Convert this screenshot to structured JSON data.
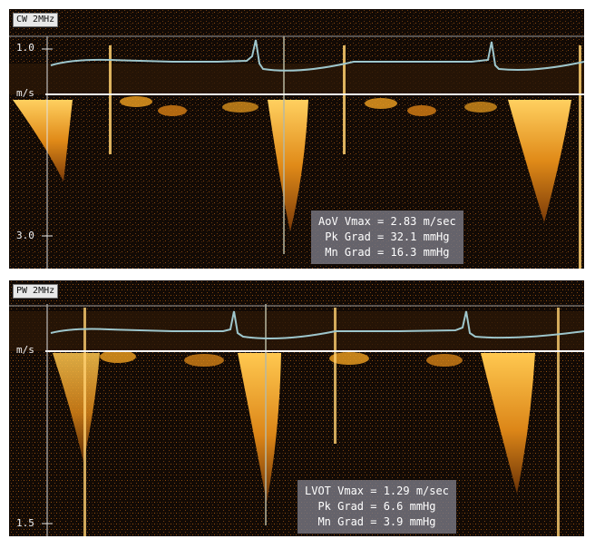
{
  "panels": [
    {
      "mode": "CW 2MHz",
      "ticks": [
        "1.0",
        "m/s",
        "3.0"
      ],
      "measurements": [
        "AoV Vmax = 2.83 m/sec",
        "Pk Grad = 32.1 mmHg",
        "Mn Grad = 16.3 mmHg"
      ]
    },
    {
      "mode": "PW 2MHz",
      "ticks": [
        "m/s",
        "1.5"
      ],
      "measurements": [
        "LVOT Vmax = 1.29 m/sec",
        "Pk Grad = 6.6 mmHg",
        "Mn Grad = 3.9 mmHg"
      ]
    }
  ],
  "colors": {
    "background": "#0b0704",
    "doppler": "#f0a020",
    "ecg": "#9ec6cc",
    "overlay": "#787882"
  }
}
